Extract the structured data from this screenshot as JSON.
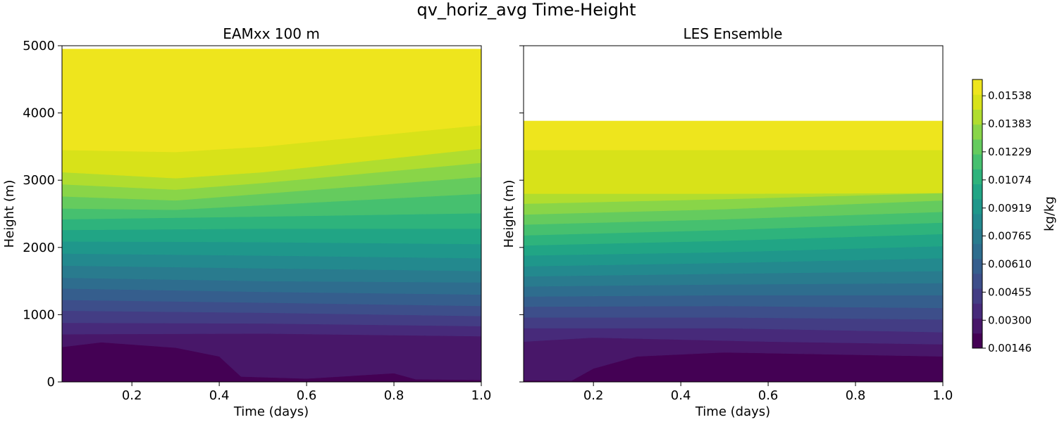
{
  "chart_data": [
    {
      "type": "contourf",
      "title": "EAMxx 100 m",
      "xlabel": "Time (days)",
      "ylabel": "Height (m)",
      "xlim": [
        0.04,
        1.0
      ],
      "ylim": [
        0,
        5000
      ],
      "data_top_m": 4950,
      "xticks": [
        "0.2",
        "0.4",
        "0.6",
        "0.8",
        "1.0"
      ],
      "yticks": [
        "0",
        "1000",
        "2000",
        "3000",
        "4000",
        "5000"
      ],
      "contour_boundaries_m": [
        {
          "t": [
            0.04,
            0.13,
            0.3,
            0.4,
            0.45,
            0.6,
            0.8,
            0.85,
            1.0
          ],
          "z": [
            520,
            590,
            510,
            380,
            80,
            50,
            130,
            40,
            30
          ]
        },
        {
          "t": [
            0.04,
            0.5,
            1.0
          ],
          "z": [
            710,
            720,
            680
          ]
        },
        {
          "t": [
            0.04,
            0.5,
            1.0
          ],
          "z": [
            880,
            870,
            830
          ]
        },
        {
          "t": [
            0.04,
            0.5,
            1.0
          ],
          "z": [
            1060,
            1030,
            980
          ]
        },
        {
          "t": [
            0.04,
            0.5,
            1.0
          ],
          "z": [
            1220,
            1180,
            1130
          ]
        },
        {
          "t": [
            0.04,
            0.5,
            1.0
          ],
          "z": [
            1390,
            1340,
            1300
          ]
        },
        {
          "t": [
            0.04,
            0.5,
            1.0
          ],
          "z": [
            1550,
            1500,
            1480
          ]
        },
        {
          "t": [
            0.04,
            0.5,
            1.0
          ],
          "z": [
            1730,
            1690,
            1650
          ]
        },
        {
          "t": [
            0.04,
            0.5,
            1.0
          ],
          "z": [
            1910,
            1880,
            1840
          ]
        },
        {
          "t": [
            0.04,
            0.5,
            1.0
          ],
          "z": [
            2090,
            2080,
            2050
          ]
        },
        {
          "t": [
            0.04,
            0.5,
            1.0
          ],
          "z": [
            2260,
            2280,
            2280
          ]
        },
        {
          "t": [
            0.04,
            0.5,
            1.0
          ],
          "z": [
            2420,
            2460,
            2510
          ]
        },
        {
          "t": [
            0.04,
            0.3,
            0.5,
            1.0
          ],
          "z": [
            2580,
            2560,
            2630,
            2800
          ]
        },
        {
          "t": [
            0.04,
            0.3,
            0.5,
            1.0
          ],
          "z": [
            2760,
            2700,
            2800,
            3050
          ]
        },
        {
          "t": [
            0.04,
            0.3,
            0.5,
            1.0
          ],
          "z": [
            2940,
            2860,
            2960,
            3260
          ]
        },
        {
          "t": [
            0.04,
            0.3,
            0.5,
            1.0
          ],
          "z": [
            3120,
            3030,
            3120,
            3470
          ]
        },
        {
          "t": [
            0.04,
            0.3,
            0.5,
            1.0
          ],
          "z": [
            3450,
            3420,
            3500,
            3820
          ]
        }
      ]
    },
    {
      "type": "contourf",
      "title": "LES Ensemble",
      "xlabel": "Time (days)",
      "ylabel": "Height (m)",
      "xlim": [
        0.04,
        1.0
      ],
      "ylim": [
        0,
        5000
      ],
      "data_top_m": 3880,
      "xticks": [
        "0.2",
        "0.4",
        "0.6",
        "0.8",
        "1.0"
      ],
      "yticks": [],
      "contour_boundaries_m": [
        {
          "t": [
            0.04,
            0.15,
            0.2,
            0.3,
            0.5,
            1.0
          ],
          "z": [
            25,
            20,
            200,
            380,
            440,
            380
          ]
        },
        {
          "t": [
            0.04,
            0.2,
            0.6,
            1.0
          ],
          "z": [
            600,
            660,
            600,
            560
          ]
        },
        {
          "t": [
            0.04,
            0.5,
            1.0
          ],
          "z": [
            800,
            800,
            740
          ]
        },
        {
          "t": [
            0.04,
            0.5,
            1.0
          ],
          "z": [
            960,
            960,
            930
          ]
        },
        {
          "t": [
            0.04,
            0.5,
            1.0
          ],
          "z": [
            1120,
            1130,
            1100
          ]
        },
        {
          "t": [
            0.04,
            0.5,
            1.0
          ],
          "z": [
            1270,
            1290,
            1290
          ]
        },
        {
          "t": [
            0.04,
            0.5,
            1.0
          ],
          "z": [
            1420,
            1450,
            1470
          ]
        },
        {
          "t": [
            0.04,
            0.5,
            1.0
          ],
          "z": [
            1570,
            1610,
            1650
          ]
        },
        {
          "t": [
            0.04,
            0.5,
            1.0
          ],
          "z": [
            1720,
            1770,
            1840
          ]
        },
        {
          "t": [
            0.04,
            0.5,
            1.0
          ],
          "z": [
            1880,
            1930,
            2020
          ]
        },
        {
          "t": [
            0.04,
            0.5,
            1.0
          ],
          "z": [
            2030,
            2100,
            2200
          ]
        },
        {
          "t": [
            0.04,
            0.5,
            1.0
          ],
          "z": [
            2180,
            2260,
            2370
          ]
        },
        {
          "t": [
            0.04,
            0.5,
            1.0
          ],
          "z": [
            2340,
            2420,
            2530
          ]
        },
        {
          "t": [
            0.04,
            0.5,
            1.0
          ],
          "z": [
            2490,
            2570,
            2700
          ]
        },
        {
          "t": [
            0.04,
            0.5,
            1.0
          ],
          "z": [
            2650,
            2720,
            2810
          ]
        },
        {
          "t": [
            0.04,
            0.5,
            1.0
          ],
          "z": [
            2800,
            2800,
            2810
          ]
        },
        {
          "t": [
            0.04,
            0.5,
            1.0
          ],
          "z": [
            3450,
            3450,
            3450
          ]
        }
      ]
    }
  ],
  "figure": {
    "suptitle": "qv_horiz_avg Time-Height",
    "colorbar": {
      "label": "kg/kg",
      "ticks": [
        "0.01538",
        "0.01383",
        "0.01229",
        "0.01074",
        "0.00919",
        "0.00765",
        "0.00610",
        "0.00455",
        "0.00300",
        "0.00146"
      ],
      "range": [
        0.00146,
        0.01628
      ],
      "colormap": "viridis",
      "levels": 18
    }
  },
  "colors": {
    "level_colors": [
      "#440154",
      "#481769",
      "#472A7A",
      "#433D84",
      "#3D4E8A",
      "#355E8D",
      "#2E6D8E",
      "#297B8E",
      "#23898E",
      "#1F978B",
      "#21A585",
      "#2EB37C",
      "#46C06F",
      "#65CB5E",
      "#89D548",
      "#B0DD2F",
      "#D8E219",
      "#EEE51D"
    ]
  }
}
